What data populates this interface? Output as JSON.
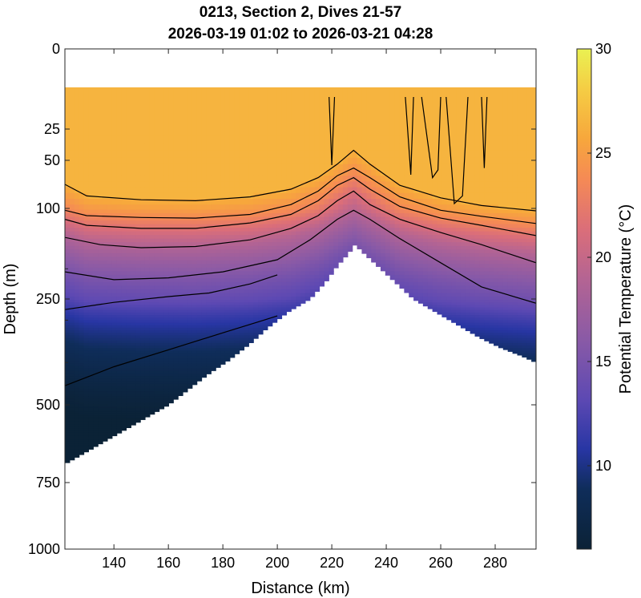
{
  "chart_data": {
    "type": "heatmap",
    "title": "0213, Section 2, Dives 21-57",
    "subtitle": "2026-03-19 01:02 to 2026-03-21 04:28",
    "xlabel": "Distance (km)",
    "ylabel": "Depth (m)",
    "colorbar_label": "Potential Temperature (°C)",
    "xlim": [
      122,
      295
    ],
    "x_ticks": [
      140,
      160,
      180,
      200,
      220,
      240,
      260,
      280
    ],
    "y_ticks": [
      0,
      25,
      50,
      100,
      250,
      500,
      750,
      1000
    ],
    "y_ticks_minor": [
      200,
      300,
      400
    ],
    "colorbar_ticks": [
      10,
      15,
      20,
      25,
      30
    ],
    "clim": [
      6,
      30
    ],
    "colors": {
      "mixed_layer": "#f6ab3d",
      "deep": "#0b2236",
      "contour": "#000000"
    },
    "seafloor": {
      "x": [
        122,
        130,
        140,
        150,
        158,
        166,
        174,
        182,
        190,
        196,
        204,
        212,
        218,
        222,
        226,
        228.5,
        232,
        238,
        244,
        250,
        258,
        266,
        274,
        282,
        290,
        295
      ],
      "depth": [
        690,
        650,
        600,
        550,
        510,
        470,
        430,
        395,
        355,
        320,
        280,
        250,
        220,
        195,
        175,
        160,
        175,
        200,
        225,
        250,
        280,
        310,
        340,
        365,
        385,
        400
      ]
    },
    "data_top_depth": 12,
    "mixed_layer_depth": {
      "x": [
        122,
        130,
        150,
        170,
        190,
        205,
        215,
        222,
        228,
        234,
        245,
        260,
        275,
        295
      ],
      "depth": [
        75,
        87,
        91,
        92,
        88,
        80,
        68,
        54,
        42,
        54,
        76,
        89,
        97,
        104
      ]
    },
    "contours": [
      {
        "x": [
          122,
          130,
          150,
          170,
          190,
          205,
          215,
          222,
          228,
          234,
          245,
          260,
          275,
          295
        ],
        "depth": [
          103,
          112,
          115,
          116,
          110,
          96,
          82,
          66,
          58,
          68,
          88,
          103,
          113,
          125
        ]
      },
      {
        "x": [
          122,
          130,
          150,
          170,
          190,
          205,
          215,
          222,
          228,
          234,
          245,
          260,
          275,
          295
        ],
        "depth": [
          118,
          128,
          133,
          133,
          124,
          110,
          92,
          76,
          68,
          80,
          98,
          116,
          128,
          145
        ]
      },
      {
        "x": [
          122,
          135,
          150,
          170,
          190,
          205,
          215,
          222,
          228,
          234,
          245,
          260,
          275,
          295
        ],
        "depth": [
          148,
          160,
          165,
          163,
          152,
          133,
          112,
          92,
          82,
          96,
          118,
          140,
          160,
          190
        ]
      },
      {
        "x": [
          122,
          140,
          160,
          180,
          200,
          212,
          222,
          228,
          234,
          245,
          260,
          275,
          295
        ],
        "depth": [
          205,
          218,
          215,
          205,
          185,
          152,
          118,
          103,
          118,
          150,
          190,
          230,
          260
        ]
      },
      {
        "x": [
          122,
          140,
          160,
          175,
          190,
          200
        ],
        "depth": [
          275,
          258,
          246,
          240,
          225,
          210
        ]
      },
      {
        "x": [
          122,
          140,
          160,
          180,
          195,
          200
        ],
        "depth": [
          455,
          410,
          370,
          330,
          300,
          290
        ]
      }
    ],
    "mixed_layer_columns": [
      {
        "x": [
          219,
          220,
          221
        ],
        "depth_from": 15,
        "depth_to": 55
      },
      {
        "x": [
          247,
          249,
          250
        ],
        "depth_from": 15,
        "depth_to": 65
      },
      {
        "x": [
          253,
          257,
          259,
          260
        ],
        "depth_from": 15,
        "depth_to": 68
      },
      {
        "x": [
          262,
          265,
          268,
          270
        ],
        "depth_from": 15,
        "depth_to": 95
      },
      {
        "x": [
          275,
          276,
          277
        ],
        "depth_from": 15,
        "depth_to": 58
      }
    ]
  }
}
